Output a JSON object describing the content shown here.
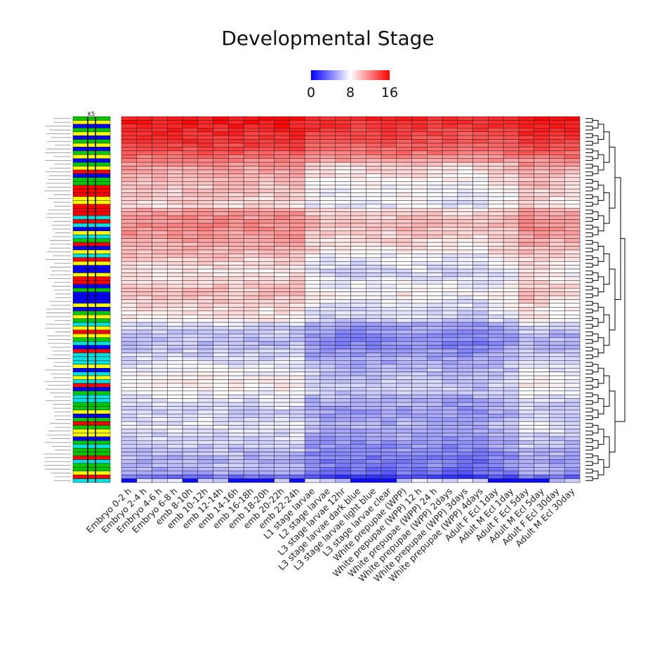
{
  "chart_data": {
    "type": "heatmap",
    "title": "Developmental Stage",
    "colorbar": {
      "ticks": [
        "0",
        "8",
        "16"
      ],
      "min": 0,
      "max": 16,
      "colors": [
        "#0000ff",
        "#ffffff",
        "#ff0000"
      ]
    },
    "side_bar_label": "K5",
    "side_bar_colors": [
      "#ff0000",
      "#0000ff",
      "#00c800",
      "#ffff00",
      "#00e0e0"
    ],
    "columns": [
      "Embryo 0-2 h",
      "Embryo 2-4 h",
      "Embryo 4-6 h",
      "Embryo 6-8 h",
      "emb 8-10h",
      "emb 10-12h",
      "emb 12-14h",
      "emb 14-16h",
      "emb 16-18h",
      "emb 18-20h",
      "emb 20-22h",
      "emb 22-24h",
      "L1 stage larvae",
      "L2 stage larvae",
      "L3 stage larvae 12hr",
      "L3 stage larvae dark blue",
      "L3 stage larvae light blue",
      "L3 stage larvae clear",
      "White prepupae (WPP)",
      "White prepupae (WPP) 12 h",
      "White prepupae (WPP) 24 h",
      "White prepupae (WPP) 2days",
      "White prepupae (WPP) 3days",
      "White prepupae (WPP) 4days",
      "Adult F Ecl 1day",
      "Adult M Ecl 1day",
      "Adult F Ecl 5day",
      "Adult M Ecl 5day",
      "Adult F Ecl 30day",
      "Adult M Ecl 30day"
    ],
    "row_count": 96,
    "row_profile": [
      15.2,
      14.9,
      14.7,
      14.5,
      14.3,
      14.1,
      13.9,
      13.6,
      13.3,
      12.8,
      12.1,
      11.4,
      10.6,
      10.2,
      9.9,
      9.6,
      9.4,
      9.2,
      9.0,
      8.9,
      8.8,
      8.7,
      8.6,
      8.4,
      10.1,
      10.4,
      10.6,
      10.8,
      10.9,
      10.7,
      10.5,
      10.3,
      10.0,
      9.8,
      9.6,
      9.4,
      8.9,
      8.6,
      8.4,
      8.2,
      8.0,
      7.9,
      8.3,
      8.6,
      8.8,
      9.0,
      9.2,
      9.0,
      8.7,
      8.4,
      8.2,
      8.0,
      7.8,
      7.6,
      6.4,
      6.0,
      5.8,
      5.6,
      5.5,
      5.4,
      5.6,
      5.9,
      6.1,
      6.3,
      6.5,
      6.8,
      7.0,
      7.2,
      7.4,
      7.6,
      7.7,
      7.5,
      7.2,
      6.9,
      6.6,
      6.4,
      6.2,
      6.0,
      6.2,
      6.5,
      6.7,
      6.9,
      6.6,
      6.3,
      6.1,
      5.9,
      5.7,
      5.5,
      5.3,
      5.1,
      4.9,
      5.2,
      4.8,
      4.5,
      3.0,
      2.2
    ],
    "column_offsets": [
      0.6,
      0.5,
      0.5,
      0.6,
      0.7,
      0.6,
      0.7,
      0.6,
      0.5,
      0.5,
      0.6,
      0.6,
      -0.6,
      -0.8,
      -0.9,
      -1.0,
      -0.9,
      -0.9,
      -0.6,
      -0.7,
      -0.8,
      -1.0,
      -1.1,
      -1.1,
      -0.6,
      -0.4,
      0.6,
      0.5,
      0.2,
      0.1
    ],
    "dark_cells_bottom_row": [
      0,
      4,
      7,
      8,
      9,
      11,
      15,
      16,
      17,
      24,
      25,
      26,
      27
    ]
  }
}
